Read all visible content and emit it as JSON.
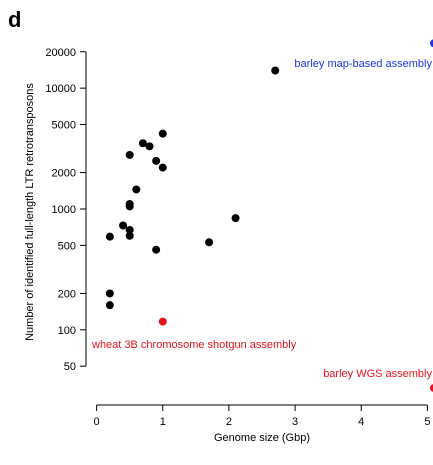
{
  "panel_letter": "d",
  "chart_data": {
    "type": "scatter",
    "title": "",
    "xlabel": "Genome size (Gbp)",
    "ylabel": "Number of identified full-length LTR retrotransposons",
    "x_scale": "linear",
    "y_scale": "log",
    "xlim": [
      -0.1,
      5.1
    ],
    "ylim": [
      30,
      26000
    ],
    "x_ticks": [
      0,
      1,
      2,
      3,
      4,
      5
    ],
    "y_ticks": [
      50,
      100,
      200,
      500,
      1000,
      2000,
      5000,
      10000,
      20000
    ],
    "grid": false,
    "colors": {
      "default": "#000000",
      "blue": "#1f35e8",
      "red": "#e8141e"
    },
    "points": [
      {
        "x": 0.2,
        "y": 200,
        "color": "default"
      },
      {
        "x": 0.2,
        "y": 160,
        "color": "default"
      },
      {
        "x": 0.2,
        "y": 590,
        "color": "default"
      },
      {
        "x": 0.4,
        "y": 730,
        "color": "default"
      },
      {
        "x": 0.5,
        "y": 670,
        "color": "default"
      },
      {
        "x": 0.5,
        "y": 600,
        "color": "default"
      },
      {
        "x": 0.5,
        "y": 1100,
        "color": "default"
      },
      {
        "x": 0.5,
        "y": 1050,
        "color": "default"
      },
      {
        "x": 0.5,
        "y": 2800,
        "color": "default"
      },
      {
        "x": 0.6,
        "y": 1450,
        "color": "default"
      },
      {
        "x": 0.7,
        "y": 3500,
        "color": "default"
      },
      {
        "x": 0.8,
        "y": 3300,
        "color": "default"
      },
      {
        "x": 0.9,
        "y": 2500,
        "color": "default"
      },
      {
        "x": 0.9,
        "y": 460,
        "color": "default"
      },
      {
        "x": 1.0,
        "y": 4200,
        "color": "default"
      },
      {
        "x": 1.0,
        "y": 2200,
        "color": "default"
      },
      {
        "x": 1.7,
        "y": 530,
        "color": "default"
      },
      {
        "x": 2.1,
        "y": 840,
        "color": "default"
      },
      {
        "x": 2.7,
        "y": 14000,
        "color": "default"
      },
      {
        "x": 5.1,
        "y": 23500,
        "color": "blue"
      },
      {
        "x": 1.0,
        "y": 117,
        "color": "red"
      },
      {
        "x": 5.1,
        "y": 33,
        "color": "red"
      }
    ],
    "annotations": [
      {
        "text": "barley map-based assembly",
        "color": "blue"
      },
      {
        "text": "wheat 3B chromosome shotgun assembly",
        "color": "red"
      },
      {
        "text": "barley WGS assembly",
        "color": "red"
      }
    ]
  }
}
